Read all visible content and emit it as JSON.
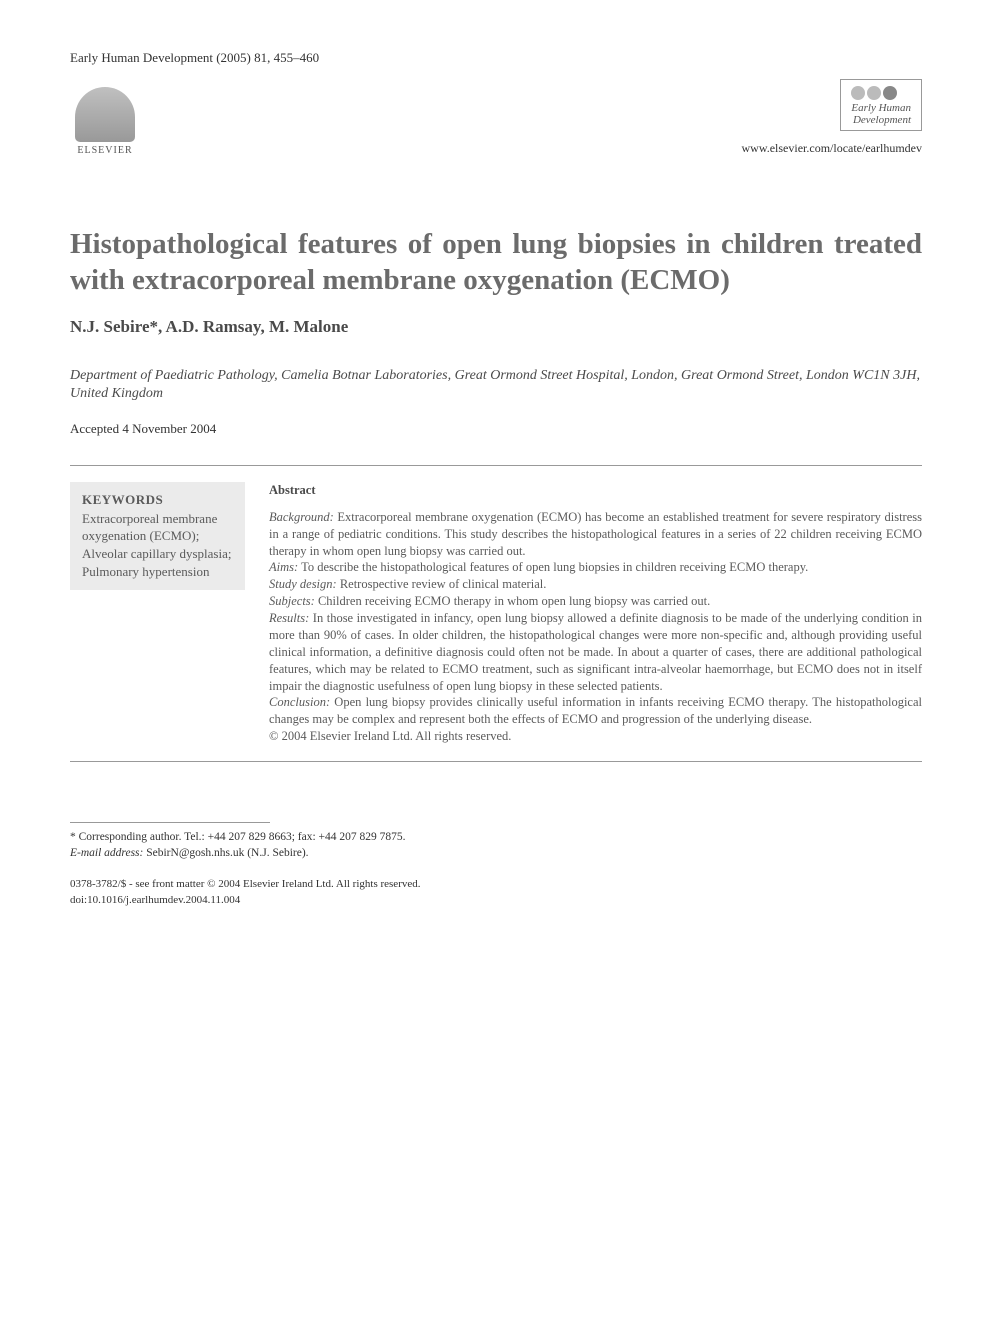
{
  "header": {
    "journal_ref": "Early Human Development (2005) 81, 455–460",
    "publisher_name": "ELSEVIER",
    "journal_logo_line1": "Early Human",
    "journal_logo_line2": "Development",
    "journal_url": "www.elsevier.com/locate/earlhumdev"
  },
  "article": {
    "title": "Histopathological features of open lung biopsies in children treated with extracorporeal membrane oxygenation (ECMO)",
    "authors": "N.J. Sebire*, A.D. Ramsay, M. Malone",
    "affiliation": "Department of Paediatric Pathology, Camelia Botnar Laboratories, Great Ormond Street Hospital, London, Great Ormond Street, London WC1N 3JH, United Kingdom",
    "accepted": "Accepted 4 November 2004"
  },
  "keywords": {
    "heading": "KEYWORDS",
    "text": "Extracorporeal membrane oxygenation (ECMO); Alveolar capillary dysplasia; Pulmonary hypertension"
  },
  "abstract": {
    "heading": "Abstract",
    "sections": [
      {
        "label": "Background:",
        "text": " Extracorporeal membrane oxygenation (ECMO) has become an established treatment for severe respiratory distress in a range of pediatric conditions. This study describes the histopathological features in a series of 22 children receiving ECMO therapy in whom open lung biopsy was carried out."
      },
      {
        "label": "Aims:",
        "text": " To describe the histopathological features of open lung biopsies in children receiving ECMO therapy."
      },
      {
        "label": "Study design:",
        "text": " Retrospective review of clinical material."
      },
      {
        "label": "Subjects:",
        "text": " Children receiving ECMO therapy in whom open lung biopsy was carried out."
      },
      {
        "label": "Results:",
        "text": " In those investigated in infancy, open lung biopsy allowed a definite diagnosis to be made of the underlying condition in more than 90% of cases. In older children, the histopathological changes were more non-specific and, although providing useful clinical information, a definitive diagnosis could often not be made. In about a quarter of cases, there are additional pathological features, which may be related to ECMO treatment, such as significant intra-alveolar haemorrhage, but ECMO does not in itself impair the diagnostic usefulness of open lung biopsy in these selected patients."
      },
      {
        "label": "Conclusion:",
        "text": " Open lung biopsy provides clinically useful information in infants receiving ECMO therapy. The histopathological changes may be complex and represent both the effects of ECMO and progression of the underlying disease."
      }
    ],
    "copyright": "© 2004 Elsevier Ireland Ltd. All rights reserved."
  },
  "footer": {
    "corresponding": "* Corresponding author. Tel.: +44 207 829 8663; fax: +44 207 829 7875.",
    "email_label": "E-mail address:",
    "email": " SebirN@gosh.nhs.uk (N.J. Sebire).",
    "issn": "0378-3782/$ - see front matter © 2004 Elsevier Ireland Ltd. All rights reserved.",
    "doi": "doi:10.1016/j.earlhumdev.2004.11.004"
  },
  "colors": {
    "text_primary": "#323232",
    "text_muted": "#5a5a5a",
    "title_color": "#6b6b6b",
    "keywords_bg": "#ebebeb",
    "border": "#999999",
    "background": "#ffffff"
  }
}
